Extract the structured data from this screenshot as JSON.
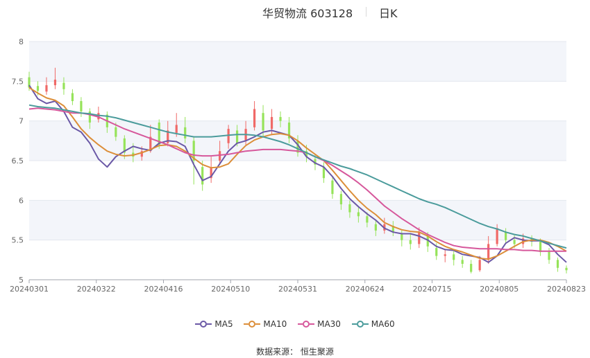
{
  "header": {
    "title": "华贸物流 603128",
    "period": "日K"
  },
  "source": {
    "label": "数据来源：",
    "provider": "恒生聚源"
  },
  "colors": {
    "up": "#f06967",
    "down": "#96e35a",
    "grid_band": "#f3f5fa",
    "grid_line": "#e3e7ef"
  },
  "chart_data": {
    "type": "candlestick",
    "ylim": [
      5,
      8
    ],
    "yticks": [
      5,
      5.5,
      6,
      6.5,
      7,
      7.5,
      8
    ],
    "xticks": [
      "20240301",
      "20240322",
      "20240416",
      "20240510",
      "20240531",
      "20240624",
      "20240715",
      "20240805",
      "20240823"
    ],
    "grid": true,
    "legend_position": "bottom",
    "series": [
      {
        "name": "MA5",
        "color": "#6a58a6",
        "values": [
          7.45,
          7.28,
          7.22,
          7.25,
          7.12,
          6.92,
          6.86,
          6.72,
          6.52,
          6.42,
          6.55,
          6.62,
          6.68,
          6.65,
          6.63,
          6.72,
          6.75,
          6.74,
          6.68,
          6.45,
          6.25,
          6.3,
          6.46,
          6.62,
          6.72,
          6.75,
          6.8,
          6.86,
          6.88,
          6.85,
          6.82,
          6.7,
          6.55,
          6.47,
          6.42,
          6.3,
          6.15,
          6.02,
          5.92,
          5.83,
          5.75,
          5.65,
          5.6,
          5.58,
          5.58,
          5.55,
          5.5,
          5.42,
          5.38,
          5.37,
          5.32,
          5.3,
          5.28,
          5.22,
          5.3,
          5.46,
          5.53,
          5.5,
          5.49,
          5.49,
          5.44,
          5.32,
          5.22
        ]
      },
      {
        "name": "MA10",
        "color": "#dc8e39",
        "values": [
          7.42,
          7.35,
          7.29,
          7.26,
          7.19,
          7.05,
          6.9,
          6.79,
          6.7,
          6.62,
          6.58,
          6.56,
          6.57,
          6.6,
          6.64,
          6.69,
          6.7,
          6.68,
          6.62,
          6.53,
          6.45,
          6.41,
          6.42,
          6.46,
          6.58,
          6.69,
          6.76,
          6.8,
          6.83,
          6.84,
          6.82,
          6.75,
          6.66,
          6.58,
          6.5,
          6.38,
          6.25,
          6.12,
          6.0,
          5.9,
          5.82,
          5.72,
          5.67,
          5.63,
          5.61,
          5.6,
          5.55,
          5.48,
          5.42,
          5.38,
          5.35,
          5.31,
          5.27,
          5.26,
          5.3,
          5.36,
          5.42,
          5.48,
          5.5,
          5.5,
          5.47,
          5.42,
          5.36
        ]
      },
      {
        "name": "MA30",
        "color": "#d6579b",
        "values": [
          7.15,
          7.16,
          7.15,
          7.14,
          7.12,
          7.1,
          7.1,
          7.08,
          7.05,
          7.0,
          6.95,
          6.9,
          6.86,
          6.82,
          6.78,
          6.74,
          6.7,
          6.65,
          6.6,
          6.57,
          6.56,
          6.56,
          6.57,
          6.58,
          6.6,
          6.62,
          6.63,
          6.64,
          6.64,
          6.64,
          6.63,
          6.62,
          6.6,
          6.55,
          6.5,
          6.44,
          6.37,
          6.3,
          6.22,
          6.13,
          6.03,
          5.93,
          5.85,
          5.77,
          5.7,
          5.63,
          5.57,
          5.52,
          5.47,
          5.43,
          5.41,
          5.4,
          5.39,
          5.39,
          5.39,
          5.38,
          5.38,
          5.37,
          5.37,
          5.36,
          5.36,
          5.36,
          5.36
        ]
      },
      {
        "name": "MA60",
        "color": "#4a9b9b",
        "values": [
          7.2,
          7.18,
          7.17,
          7.16,
          7.14,
          7.12,
          7.1,
          7.09,
          7.07,
          7.06,
          7.04,
          7.01,
          6.98,
          6.95,
          6.92,
          6.89,
          6.86,
          6.84,
          6.82,
          6.8,
          6.8,
          6.8,
          6.81,
          6.82,
          6.83,
          6.83,
          6.82,
          6.8,
          6.77,
          6.74,
          6.7,
          6.65,
          6.6,
          6.55,
          6.51,
          6.47,
          6.43,
          6.4,
          6.36,
          6.32,
          6.27,
          6.22,
          6.17,
          6.12,
          6.07,
          6.02,
          5.98,
          5.95,
          5.91,
          5.86,
          5.81,
          5.76,
          5.71,
          5.67,
          5.64,
          5.6,
          5.57,
          5.55,
          5.52,
          5.49,
          5.46,
          5.43,
          5.4
        ]
      }
    ],
    "candles": [
      [
        7.55,
        7.42,
        7.62,
        7.38
      ],
      [
        7.44,
        7.38,
        7.5,
        7.32
      ],
      [
        7.37,
        7.45,
        7.55,
        7.33
      ],
      [
        7.45,
        7.52,
        7.67,
        7.4
      ],
      [
        7.48,
        7.4,
        7.55,
        7.33
      ],
      [
        7.35,
        7.25,
        7.4,
        7.2
      ],
      [
        7.25,
        7.12,
        7.3,
        7.05
      ],
      [
        7.12,
        6.98,
        7.16,
        6.9
      ],
      [
        7.02,
        7.1,
        7.18,
        6.98
      ],
      [
        7.08,
        6.92,
        7.12,
        6.85
      ],
      [
        6.92,
        6.8,
        6.98,
        6.75
      ],
      [
        6.78,
        6.6,
        6.82,
        6.52
      ],
      [
        6.6,
        6.55,
        6.72,
        6.48
      ],
      [
        6.55,
        6.62,
        6.68,
        6.5
      ],
      [
        6.62,
        6.8,
        6.95,
        6.6
      ],
      [
        6.98,
        6.7,
        7.02,
        6.65
      ],
      [
        6.72,
        6.88,
        7.0,
        6.68
      ],
      [
        6.85,
        6.95,
        7.1,
        6.8
      ],
      [
        6.92,
        6.78,
        7.05,
        6.72
      ],
      [
        6.75,
        6.5,
        6.8,
        6.2
      ],
      [
        6.42,
        6.2,
        6.5,
        6.12
      ],
      [
        6.28,
        6.42,
        6.55,
        6.22
      ],
      [
        6.5,
        6.62,
        6.75,
        6.45
      ],
      [
        6.72,
        6.9,
        6.95,
        6.65
      ],
      [
        6.88,
        6.72,
        6.95,
        6.68
      ],
      [
        6.75,
        6.9,
        7.0,
        6.7
      ],
      [
        6.92,
        7.15,
        7.25,
        6.88
      ],
      [
        7.1,
        6.88,
        7.2,
        6.8
      ],
      [
        6.9,
        7.05,
        7.15,
        6.82
      ],
      [
        7.05,
        7.0,
        7.12,
        6.92
      ],
      [
        6.98,
        6.78,
        7.05,
        6.72
      ],
      [
        6.75,
        6.6,
        6.82,
        6.55
      ],
      [
        6.62,
        6.55,
        6.7,
        6.48
      ],
      [
        6.52,
        6.45,
        6.58,
        6.38
      ],
      [
        6.42,
        6.28,
        6.48,
        6.22
      ],
      [
        6.25,
        6.08,
        6.3,
        6.02
      ],
      [
        6.08,
        5.95,
        6.12,
        5.88
      ],
      [
        5.95,
        5.85,
        6.0,
        5.78
      ],
      [
        5.85,
        5.8,
        5.92,
        5.72
      ],
      [
        5.8,
        5.72,
        5.85,
        5.66
      ],
      [
        5.7,
        5.62,
        5.76,
        5.55
      ],
      [
        5.62,
        5.7,
        5.78,
        5.58
      ],
      [
        5.68,
        5.6,
        5.74,
        5.55
      ],
      [
        5.58,
        5.5,
        5.62,
        5.42
      ],
      [
        5.5,
        5.45,
        5.58,
        5.38
      ],
      [
        5.45,
        5.6,
        5.66,
        5.4
      ],
      [
        5.55,
        5.42,
        5.6,
        5.35
      ],
      [
        5.4,
        5.3,
        5.46,
        5.25
      ],
      [
        5.3,
        5.32,
        5.38,
        5.22
      ],
      [
        5.32,
        5.25,
        5.36,
        5.18
      ],
      [
        5.25,
        5.2,
        5.3,
        5.15
      ],
      [
        5.2,
        5.1,
        5.25,
        5.08
      ],
      [
        5.12,
        5.25,
        5.3,
        5.1
      ],
      [
        5.25,
        5.45,
        5.55,
        5.2
      ],
      [
        5.45,
        5.65,
        5.7,
        5.42
      ],
      [
        5.6,
        5.5,
        5.65,
        5.45
      ],
      [
        5.5,
        5.45,
        5.56,
        5.4
      ],
      [
        5.45,
        5.52,
        5.58,
        5.4
      ],
      [
        5.52,
        5.48,
        5.56,
        5.42
      ],
      [
        5.48,
        5.35,
        5.52,
        5.3
      ],
      [
        5.35,
        5.25,
        5.4,
        5.2
      ],
      [
        5.25,
        5.15,
        5.28,
        5.1
      ],
      [
        5.15,
        5.12,
        5.18,
        5.08
      ]
    ]
  },
  "legend": {
    "items": [
      "MA5",
      "MA10",
      "MA30",
      "MA60"
    ]
  }
}
